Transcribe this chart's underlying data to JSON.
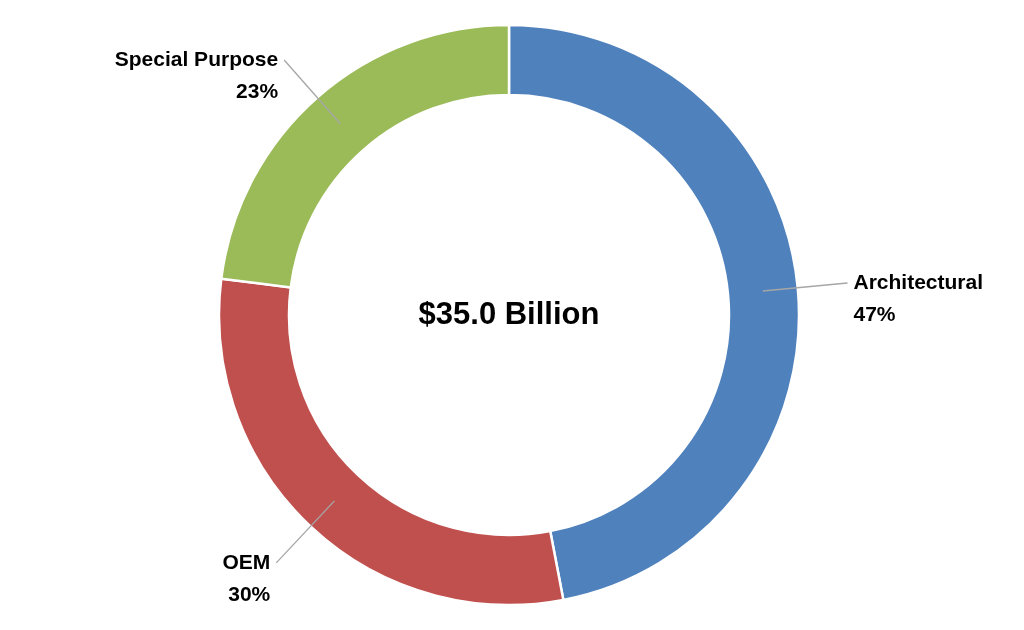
{
  "chart_data": {
    "type": "donut",
    "categories": [
      "Architectural",
      "OEM",
      "Special Purpose"
    ],
    "values": [
      47,
      30,
      23
    ],
    "value_labels": [
      "47%",
      "30%",
      "23%"
    ],
    "colors": [
      "#4f81bd",
      "#c0504d",
      "#9bbb59"
    ],
    "annotations": [
      "$35.0 Billion"
    ]
  }
}
